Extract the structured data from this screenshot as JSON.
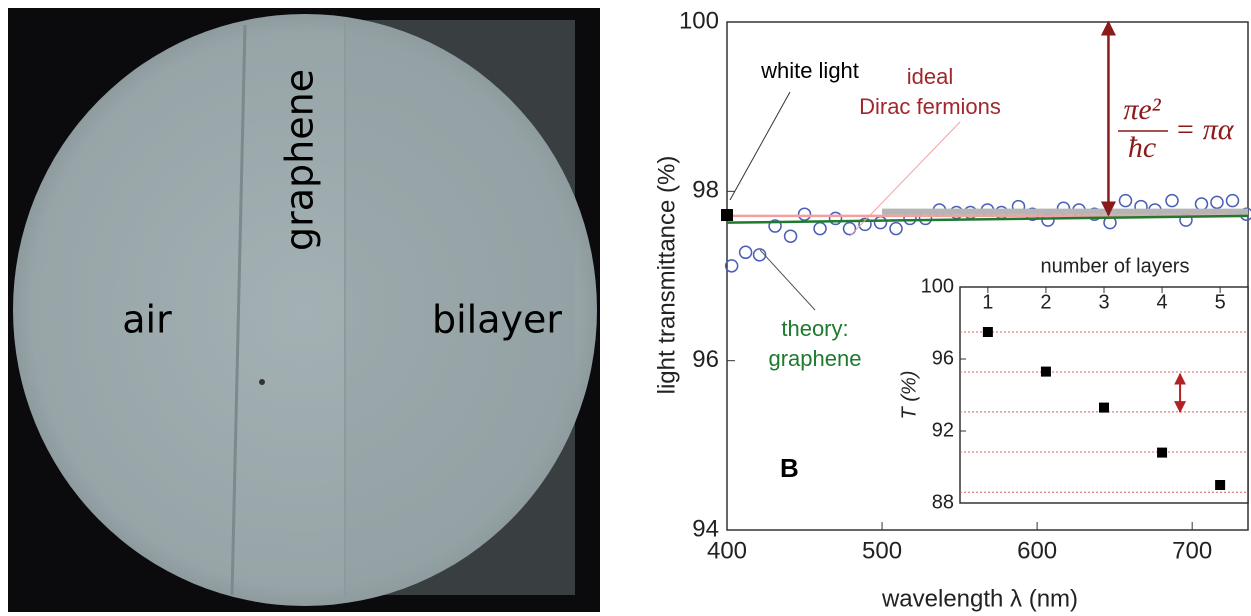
{
  "photo": {
    "labels": [
      "air",
      "graphene",
      "bilayer"
    ]
  },
  "chart_data": [
    {
      "type": "scatter",
      "panel_label": "B",
      "x_label": "wavelength λ (nm)",
      "y_label": "light  transmittance  (%)",
      "xlim": [
        400,
        736
      ],
      "ylim": [
        94,
        100
      ],
      "xticks": [
        400,
        500,
        600,
        700
      ],
      "yticks": [
        94,
        96,
        98,
        100
      ],
      "series": [
        {
          "marker": "circle",
          "color": "#4a5fb5",
          "x": [
            403,
            412,
            421,
            431,
            441,
            450,
            460,
            470,
            479,
            489,
            499,
            509,
            518,
            528,
            537,
            548,
            557,
            568,
            577,
            588,
            597,
            607,
            617,
            627,
            637,
            647,
            657,
            667,
            676,
            687,
            696,
            706,
            716,
            726,
            735
          ],
          "values": [
            97.12,
            97.28,
            97.25,
            97.59,
            97.47,
            97.73,
            97.56,
            97.68,
            97.56,
            97.61,
            97.63,
            97.56,
            97.68,
            97.68,
            97.78,
            97.75,
            97.75,
            97.78,
            97.75,
            97.82,
            97.73,
            97.66,
            97.8,
            97.78,
            97.73,
            97.63,
            97.89,
            97.82,
            97.78,
            97.89,
            97.66,
            97.85,
            97.87,
            97.89,
            97.73
          ]
        },
        {
          "marker": "band",
          "color": "#b5b5b5",
          "x": [
            500,
            736
          ],
          "values": [
            97.76,
            97.76
          ]
        },
        {
          "marker": "line",
          "color": "#f2a0a0",
          "x": [
            400,
            736
          ],
          "values": [
            97.71,
            97.71
          ]
        },
        {
          "marker": "line",
          "color": "#1f7a2e",
          "x": [
            400,
            736
          ],
          "values": [
            97.63,
            97.71
          ]
        },
        {
          "marker": "square",
          "color": "#000000",
          "x": [
            400
          ],
          "values": [
            97.72
          ]
        }
      ],
      "annotations": [
        {
          "text": "white light",
          "color": "#000000"
        },
        {
          "text": "ideal",
          "color": "#a0282d"
        },
        {
          "text": "Dirac fermions",
          "color": "#a0282d"
        },
        {
          "text": "theory:",
          "color": "#1f7a2e"
        },
        {
          "text": "graphene",
          "color": "#1f7a2e"
        }
      ],
      "arrow": {
        "x": 646,
        "y": [
          100,
          97.72
        ],
        "color": "#8b1a1a"
      },
      "formula": {
        "numerator": "πe²",
        "denominator": "ħc",
        "rhs": "= πα"
      }
    },
    {
      "type": "scatter",
      "title": "number of layers",
      "y_label": "T (%)",
      "xlim": [
        0.52,
        5.48
      ],
      "ylim": [
        88,
        100
      ],
      "xticks": [
        1,
        2,
        3,
        4,
        5
      ],
      "yticks": [
        88,
        92,
        96,
        100
      ],
      "hlines": [
        97.5,
        95.28,
        93.06,
        90.83,
        88.6
      ],
      "hline_color": "#d86060",
      "series": [
        {
          "marker": "square",
          "color": "#000000",
          "x": [
            1,
            2,
            3,
            4,
            5
          ],
          "values": [
            97.5,
            95.3,
            93.3,
            90.8,
            89.0
          ]
        }
      ],
      "arrow": {
        "x": 4.31,
        "y": [
          95.17,
          93.06
        ],
        "color": "#b22222"
      }
    }
  ]
}
